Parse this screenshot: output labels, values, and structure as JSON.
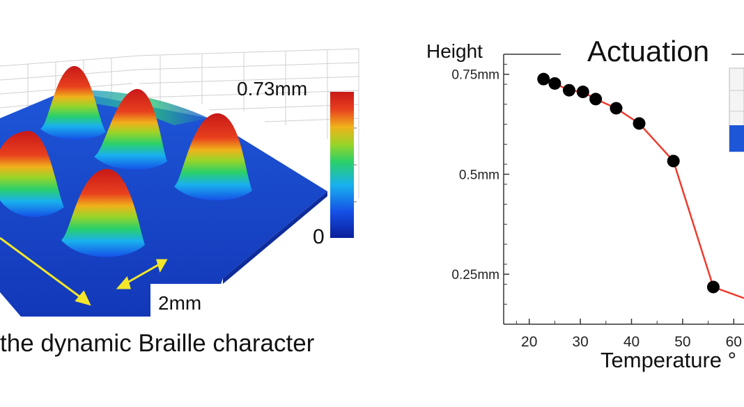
{
  "surface_plot": {
    "max_label": "0.73mm",
    "min_label": "0",
    "scale_label": "2mm",
    "caption": "the dynamic Braille character",
    "colorscale": [
      "#0a1f9a",
      "#1550e6",
      "#19b0ef",
      "#2ad06a",
      "#9ad428",
      "#f0b21b",
      "#e8401e",
      "#c81818"
    ]
  },
  "chart_data": {
    "type": "line",
    "title": "Actuation",
    "ylabel": "Height",
    "xlabel": "Temperature °",
    "x_ticks": [
      20,
      30,
      40,
      50,
      60
    ],
    "y_ticks": [
      {
        "value": 0.75,
        "label": "0.75mm"
      },
      {
        "value": 0.5,
        "label": "0.5mm"
      },
      {
        "value": 0.25,
        "label": "0.25mm"
      }
    ],
    "xlim": [
      15,
      62
    ],
    "ylim": [
      0.125,
      0.8
    ],
    "series": [
      {
        "color": "#ef3b2c",
        "marker_color": "#000000",
        "x": [
          22.8,
          25,
          27.8,
          30.5,
          33,
          37,
          41.5,
          48.2,
          56,
          62
        ],
        "y": [
          0.738,
          0.727,
          0.71,
          0.706,
          0.688,
          0.665,
          0.627,
          0.533,
          0.218,
          0.19
        ]
      }
    ]
  }
}
